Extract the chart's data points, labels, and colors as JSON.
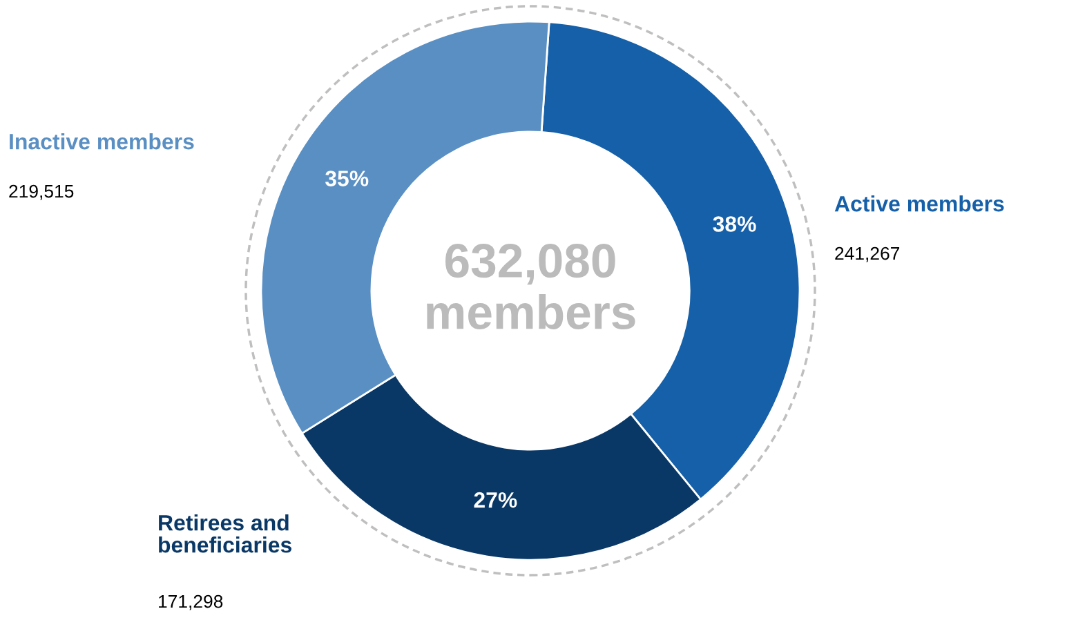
{
  "chart_data": {
    "type": "donut",
    "categories": [
      "Active members",
      "Retirees and\nbeneficiaries",
      "Inactive members"
    ],
    "values": [
      38,
      27,
      35
    ],
    "colors": [
      "#1560a8",
      "#0a3866",
      "#5a8fc3"
    ],
    "value_labels": [
      "38%",
      "27%",
      "35%"
    ],
    "annotations": [
      "632,080\nmembers",
      "241,267",
      "171,298",
      "219,515"
    ]
  }
}
